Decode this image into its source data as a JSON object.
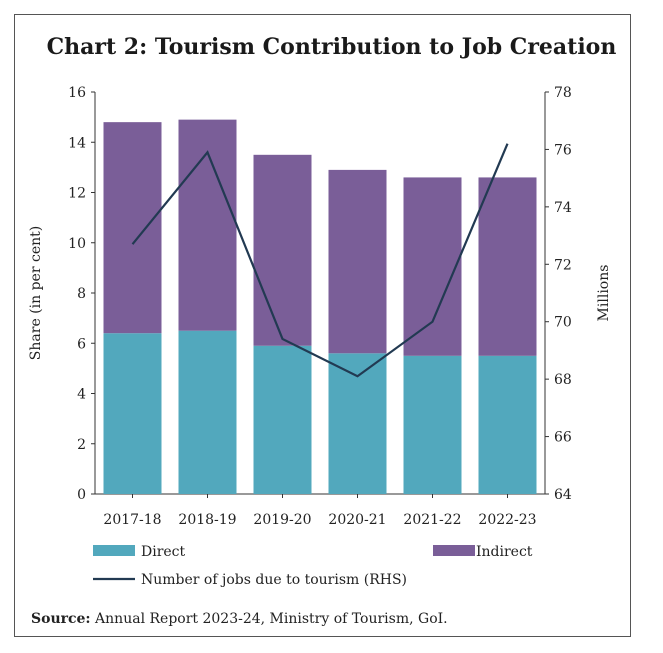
{
  "chart_data": {
    "type": "bar",
    "title": "Chart 2: Tourism Contribution to Job Creation",
    "categories": [
      "2017-18",
      "2018-19",
      "2019-20",
      "2020-21",
      "2021-22",
      "2022-23"
    ],
    "series": [
      {
        "name": "Direct",
        "kind": "stacked-bar",
        "axis": "left",
        "color": "#52a8bd",
        "values": [
          6.4,
          6.5,
          5.9,
          5.6,
          5.5,
          5.5
        ]
      },
      {
        "name": "Indirect",
        "kind": "stacked-bar",
        "axis": "left",
        "color": "#7a5e98",
        "values": [
          8.4,
          8.4,
          7.6,
          7.3,
          7.1,
          7.1
        ]
      },
      {
        "name": "Number of jobs due to tourism  (RHS)",
        "kind": "line",
        "axis": "right",
        "color": "#223a52",
        "values": [
          72.7,
          75.9,
          69.4,
          68.1,
          70.0,
          76.2
        ]
      }
    ],
    "ylabel": "Share (in per cent)",
    "ylim": [
      0,
      16
    ],
    "yticks": [
      0,
      2,
      4,
      6,
      8,
      10,
      12,
      14,
      16
    ],
    "y2label": "Millions",
    "y2lim": [
      64,
      78
    ],
    "y2ticks": [
      64,
      66,
      68,
      70,
      72,
      74,
      76,
      78
    ],
    "grid": false,
    "legend": "bottom"
  },
  "source": {
    "label": "Source:",
    "text": " Annual Report 2023-24, Ministry of Tourism, GoI."
  }
}
